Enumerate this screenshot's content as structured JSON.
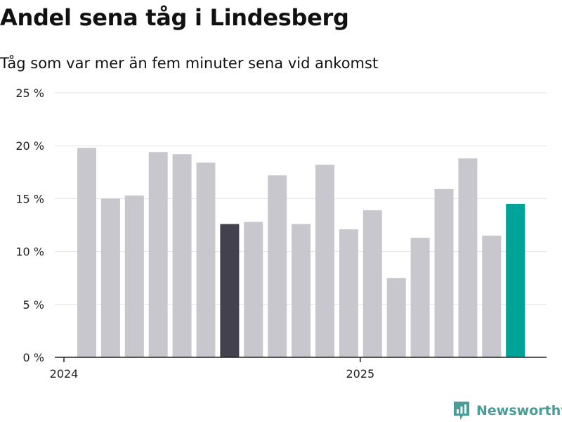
{
  "header": {
    "title": "Andel sena tåg i Lindesberg",
    "subtitle": "Tåg som var mer än fem minuter sena vid ankomst"
  },
  "brand": {
    "name": "Newsworthy",
    "icon": "newsworthy-logo-icon",
    "color": "#4a9d96"
  },
  "colors": {
    "bar": "#c8c7ce",
    "highlight_dark": "#42414d",
    "highlight_latest": "#00a398"
  },
  "chart_data": {
    "type": "bar",
    "title": "Andel sena tåg i Lindesberg",
    "subtitle": "Tåg som var mer än fem minuter sena vid ankomst",
    "xlabel": "",
    "ylabel": "",
    "ylim": [
      0,
      25
    ],
    "y_ticks": [
      0,
      5,
      10,
      15,
      20,
      25
    ],
    "y_tick_labels": [
      "0 %",
      "5 %",
      "10 %",
      "15 %",
      "20 %",
      "25 %"
    ],
    "x_ticks": [
      {
        "label": "2024",
        "at_index": 0
      },
      {
        "label": "2025",
        "at_index": 12
      }
    ],
    "grid": true,
    "values": [
      19.8,
      15.0,
      15.3,
      19.4,
      19.2,
      18.4,
      12.6,
      12.8,
      17.2,
      12.6,
      18.2,
      12.1,
      13.9,
      7.5,
      11.3,
      15.9,
      18.8,
      11.5,
      14.5
    ],
    "highlights": {
      "6": "highlight_dark",
      "18": "highlight_latest"
    }
  }
}
